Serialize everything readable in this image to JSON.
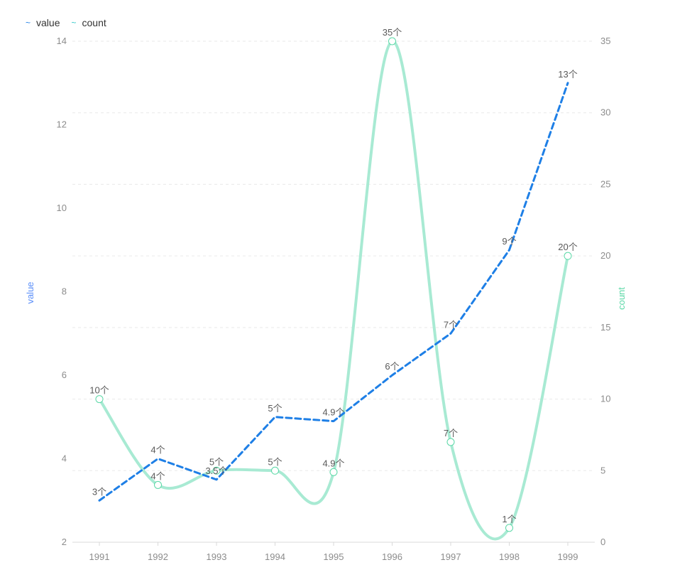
{
  "chart_data": {
    "type": "line",
    "categories": [
      "1991",
      "1992",
      "1993",
      "1994",
      "1995",
      "1996",
      "1997",
      "1998",
      "1999"
    ],
    "series": [
      {
        "name": "value",
        "axis": "left",
        "values": [
          3,
          4,
          3.5,
          5,
          4.9,
          6,
          7,
          9,
          13
        ],
        "labels": [
          "3个",
          "4个",
          "3.5个",
          "5个",
          "4.9个",
          "6个",
          "7个",
          "9个",
          "13个"
        ],
        "color": "#1e7fe6",
        "style": "dashed",
        "smooth": false,
        "markers": false
      },
      {
        "name": "count",
        "axis": "right",
        "values": [
          10,
          4,
          5,
          5,
          4.9,
          35,
          7,
          1,
          20
        ],
        "labels": [
          "10个",
          "4个",
          "5个",
          "5个",
          "4.9个",
          "35个",
          "7个",
          "1个",
          "20个"
        ],
        "color": "#a8ead3",
        "style": "solid",
        "smooth": true,
        "markers": true
      }
    ],
    "yaxis_left": {
      "label": "value",
      "min": 2,
      "max": 14,
      "ticks": [
        2,
        4,
        6,
        8,
        10,
        12,
        14
      ],
      "color": "#5b8ff9"
    },
    "yaxis_right": {
      "label": "count",
      "min": 0,
      "max": 35,
      "ticks": [
        0,
        5,
        10,
        15,
        20,
        25,
        30,
        35
      ],
      "color": "#5ad8a6"
    },
    "legend": {
      "position": "top-left",
      "items": [
        {
          "name": "value",
          "icon": "wave-icon",
          "color": "#1e7fe6"
        },
        {
          "name": "count",
          "icon": "wave-icon",
          "color": "#33c9c9"
        }
      ]
    },
    "grid": true
  }
}
